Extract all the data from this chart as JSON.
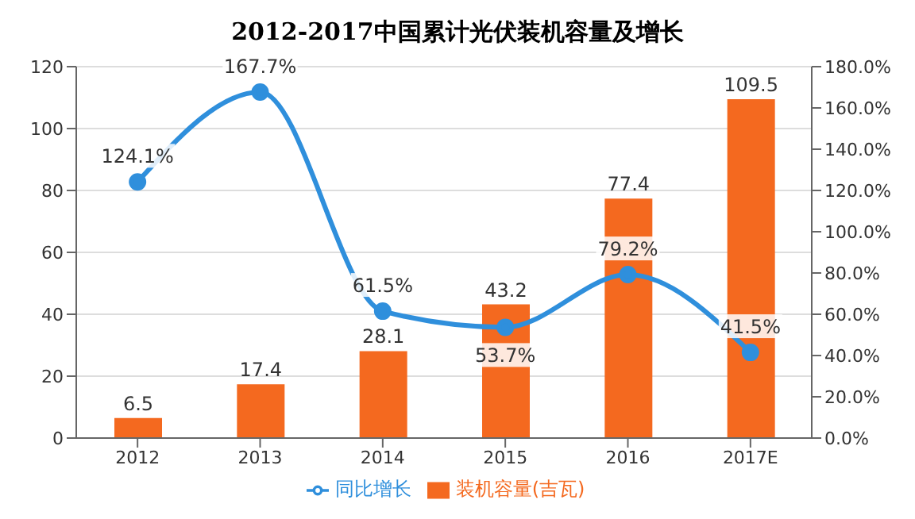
{
  "chart_data": {
    "type": "bar",
    "title": "2012-2017中国累计光伏装机容量及增长",
    "categories": [
      "2012",
      "2013",
      "2014",
      "2015",
      "2016",
      "2017E"
    ],
    "series": [
      {
        "name": "装机容量(吉瓦)",
        "color": "#f4691f",
        "values": [
          6.5,
          17.4,
          28.1,
          43.2,
          77.4,
          109.5
        ]
      },
      {
        "name": "同比增长",
        "type": "line",
        "axis": "y2",
        "color": "#2f8fdc",
        "values": [
          124.1,
          167.7,
          61.5,
          53.7,
          79.2,
          41.5
        ],
        "value_labels": [
          "124.1%",
          "167.7%",
          "61.5%",
          "53.7%",
          "79.2%",
          "41.5%"
        ]
      }
    ],
    "ylim": [
      0,
      120
    ],
    "yticks": [
      0,
      20,
      40,
      60,
      80,
      100,
      120
    ],
    "y2lim": [
      0,
      180
    ],
    "y2ticks": [
      {
        "value": 0,
        "label": "0.0%"
      },
      {
        "value": 20,
        "label": "20.0%"
      },
      {
        "value": 40,
        "label": "40.0%"
      },
      {
        "value": 60,
        "label": "60.0%"
      },
      {
        "value": 80,
        "label": "80.0%"
      },
      {
        "value": 100,
        "label": "100.0%"
      },
      {
        "value": 120,
        "label": "120.0%"
      },
      {
        "value": 140,
        "label": "140.0%"
      },
      {
        "value": 160,
        "label": "160.0%"
      },
      {
        "value": 180,
        "label": "180.0%"
      }
    ],
    "grid": "y",
    "legend": "bottom",
    "marker": "circle",
    "line_style": "solid",
    "data_labels": true
  }
}
